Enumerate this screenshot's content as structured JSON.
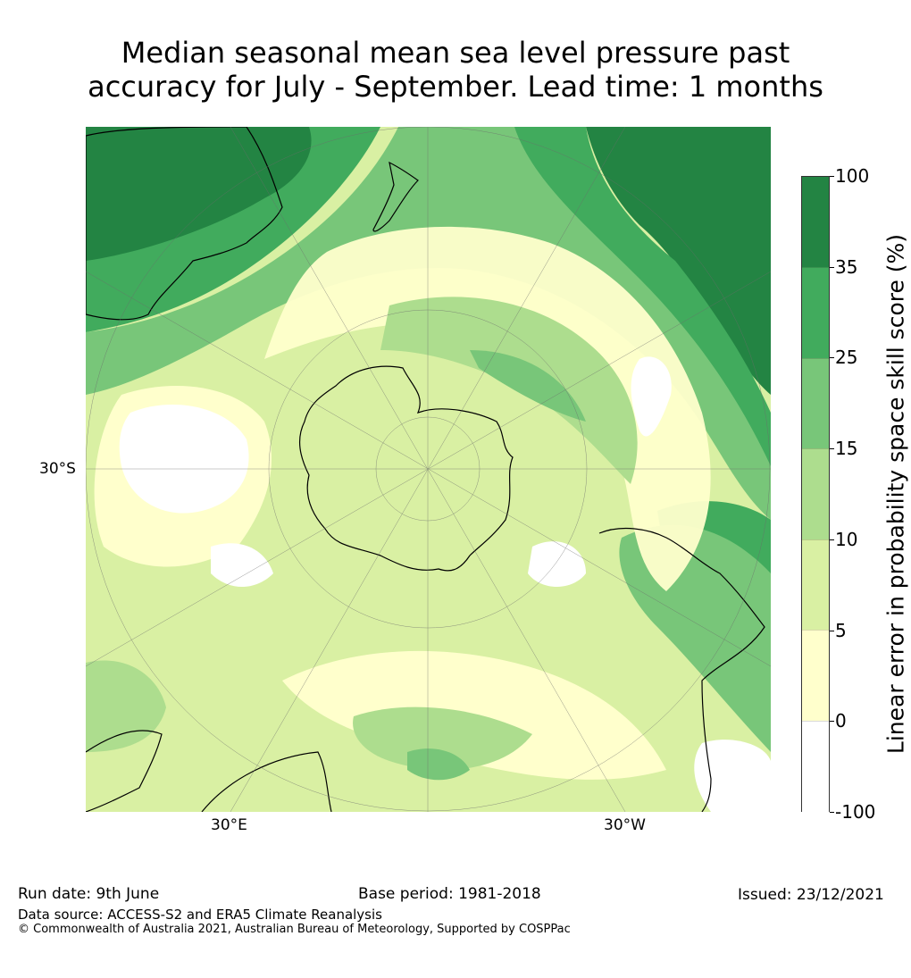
{
  "title": {
    "line1": "Median seasonal mean sea level pressure past",
    "line2": "accuracy for July - September. Lead time: 1 months"
  },
  "map": {
    "projection": "south-polar-stereographic",
    "lat_labels": [
      "30°S"
    ],
    "lon_labels": [
      "30°E",
      "30°W"
    ],
    "landmasses": [
      "Antarctica",
      "Australia",
      "New Zealand",
      "South America",
      "Africa"
    ]
  },
  "colorbar": {
    "label": "Linear error in probability space skill score (%)",
    "ticks": [
      "100",
      "35",
      "25",
      "15",
      "10",
      "5",
      "0",
      "-100"
    ],
    "bins": [
      {
        "range": "35 to 100",
        "color": "#238443"
      },
      {
        "range": "25 to 35",
        "color": "#41ab5d"
      },
      {
        "range": "15 to 25",
        "color": "#78c679"
      },
      {
        "range": "10 to 15",
        "color": "#addd8e"
      },
      {
        "range": "5 to 10",
        "color": "#d9f0a3"
      },
      {
        "range": "0 to 5",
        "color": "#ffffcc"
      },
      {
        "range": "-100 to 0",
        "color": "#ffffff"
      }
    ]
  },
  "footer": {
    "run_date": "Run date: 9th June",
    "base_period": "Base period: 1981-2018",
    "issued": "Issued: 23/12/2021",
    "data_source": "Data source: ACCESS-S2 and ERA5 Climate Reanalysis",
    "copyright": "© Commonwealth of Australia 2021, Australian Bureau of Meteorology, Supported by COSPPac"
  }
}
